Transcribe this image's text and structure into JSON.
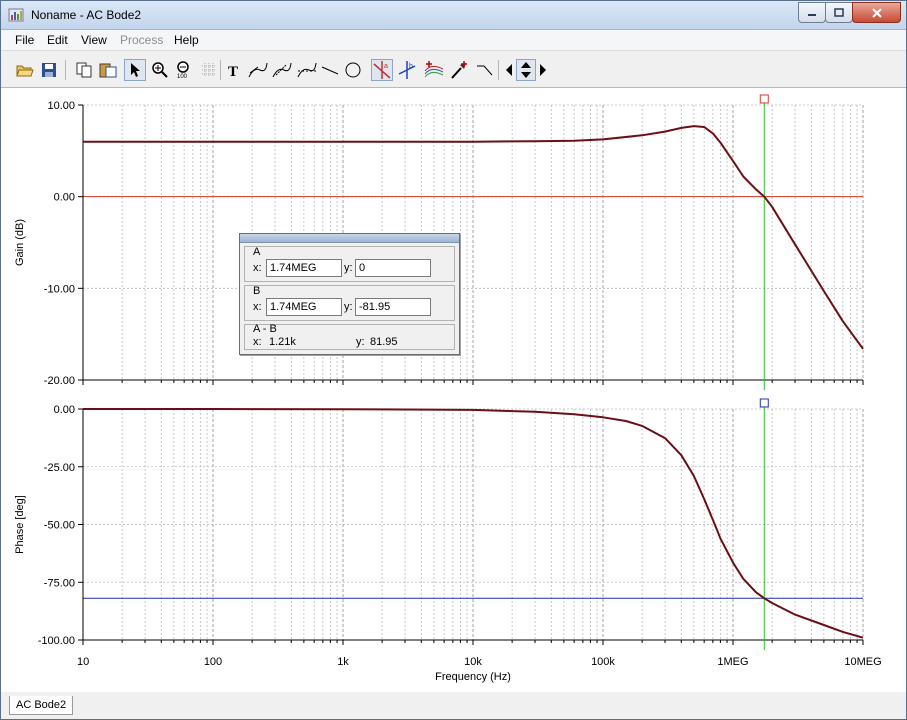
{
  "window": {
    "title": "Noname - AC Bode2"
  },
  "menu": [
    {
      "label": "File",
      "disabled": false
    },
    {
      "label": "Edit",
      "disabled": false
    },
    {
      "label": "View",
      "disabled": false
    },
    {
      "label": "Process",
      "disabled": true
    },
    {
      "label": "Help",
      "disabled": false
    }
  ],
  "toolbar": {
    "buttons": [
      "open-icon",
      "save-icon",
      "copy-icon",
      "paste-icon",
      "pointer-icon",
      "zoom-in-icon",
      "zoom-100-icon",
      "grid-icon",
      "text-icon",
      "curve-arrow-icon",
      "curve-label-icon",
      "curve-dash-icon",
      "line-icon",
      "circle-icon",
      "cursor-a-icon",
      "cursor-b-icon",
      "add-curve-icon",
      "pen-icon",
      "step-icon",
      "arrow-left-icon",
      "arrow-updown-icon",
      "arrow-right-icon"
    ]
  },
  "cursor_panel": {
    "a": {
      "label": "A",
      "x_label": "x:",
      "x": "1.74MEG",
      "y_label": "y:",
      "y": "0"
    },
    "b": {
      "label": "B",
      "x_label": "x:",
      "x": "1.74MEG",
      "y_label": "y:",
      "y": "-81.95"
    },
    "diff": {
      "label": "A - B",
      "x_label": "x:",
      "x": "1.21k",
      "y_label": "y:",
      "y": "81.95"
    }
  },
  "colors": {
    "curve": "#6b0f14",
    "cursor_line": "#29c629",
    "gain_ref": "#d23a2a",
    "phase_ref": "#1f2fb0",
    "grid": "#b8b8b8"
  },
  "status": {
    "tab_label": "AC Bode2"
  },
  "chart_data": [
    {
      "type": "line",
      "xscale": "log",
      "xlim": [
        10,
        10000000
      ],
      "ylim": [
        -20,
        10
      ],
      "ylabel": "Gain (dB)",
      "yticks": [
        "10.00",
        "0.00",
        "-10.00",
        "-20.00"
      ],
      "ytick_values": [
        10,
        0,
        -10,
        -20
      ],
      "cursor_x": 1740000,
      "reference_y": 0,
      "series": [
        {
          "x": [
            10,
            100,
            1000,
            10000,
            30000,
            60000,
            100000,
            200000,
            300000,
            400000,
            500000,
            600000,
            700000,
            800000,
            1000000,
            1200000,
            1500000,
            1740000,
            2000000,
            3000000,
            5000000,
            7000000,
            10000000
          ],
          "y": [
            6,
            6,
            6,
            6,
            6.05,
            6.1,
            6.25,
            6.7,
            7.1,
            7.5,
            7.7,
            7.6,
            6.9,
            5.9,
            3.9,
            2.2,
            0.8,
            0,
            -1.1,
            -5.2,
            -10.3,
            -13.6,
            -16.6
          ]
        }
      ]
    },
    {
      "type": "line",
      "xscale": "log",
      "xlim": [
        10,
        10000000
      ],
      "ylim": [
        -100,
        0
      ],
      "ylabel": "Phase [deg]",
      "xlabel": "Frequency (Hz)",
      "xticks": [
        "10",
        "100",
        "1k",
        "10k",
        "100k",
        "1MEG",
        "10MEG"
      ],
      "xtick_values": [
        10,
        100,
        1000,
        10000,
        100000,
        1000000,
        10000000
      ],
      "yticks": [
        "0.00",
        "-25.00",
        "-50.00",
        "-75.00",
        "-100.00"
      ],
      "ytick_values": [
        0,
        -25,
        -50,
        -75,
        -100
      ],
      "cursor_x": 1740000,
      "reference_y": -81.95,
      "series": [
        {
          "x": [
            10,
            100,
            1000,
            10000,
            30000,
            60000,
            100000,
            150000,
            200000,
            300000,
            400000,
            500000,
            600000,
            700000,
            800000,
            1000000,
            1200000,
            1500000,
            1740000,
            2000000,
            3000000,
            5000000,
            7000000,
            10000000
          ],
          "y": [
            0,
            0,
            -0.1,
            -0.4,
            -1.2,
            -2.3,
            -3.6,
            -5.2,
            -7.3,
            -12.6,
            -20,
            -29,
            -39,
            -48,
            -56,
            -66.5,
            -73.5,
            -79.3,
            -81.95,
            -84,
            -89,
            -93.5,
            -96.5,
            -99
          ]
        }
      ]
    }
  ]
}
